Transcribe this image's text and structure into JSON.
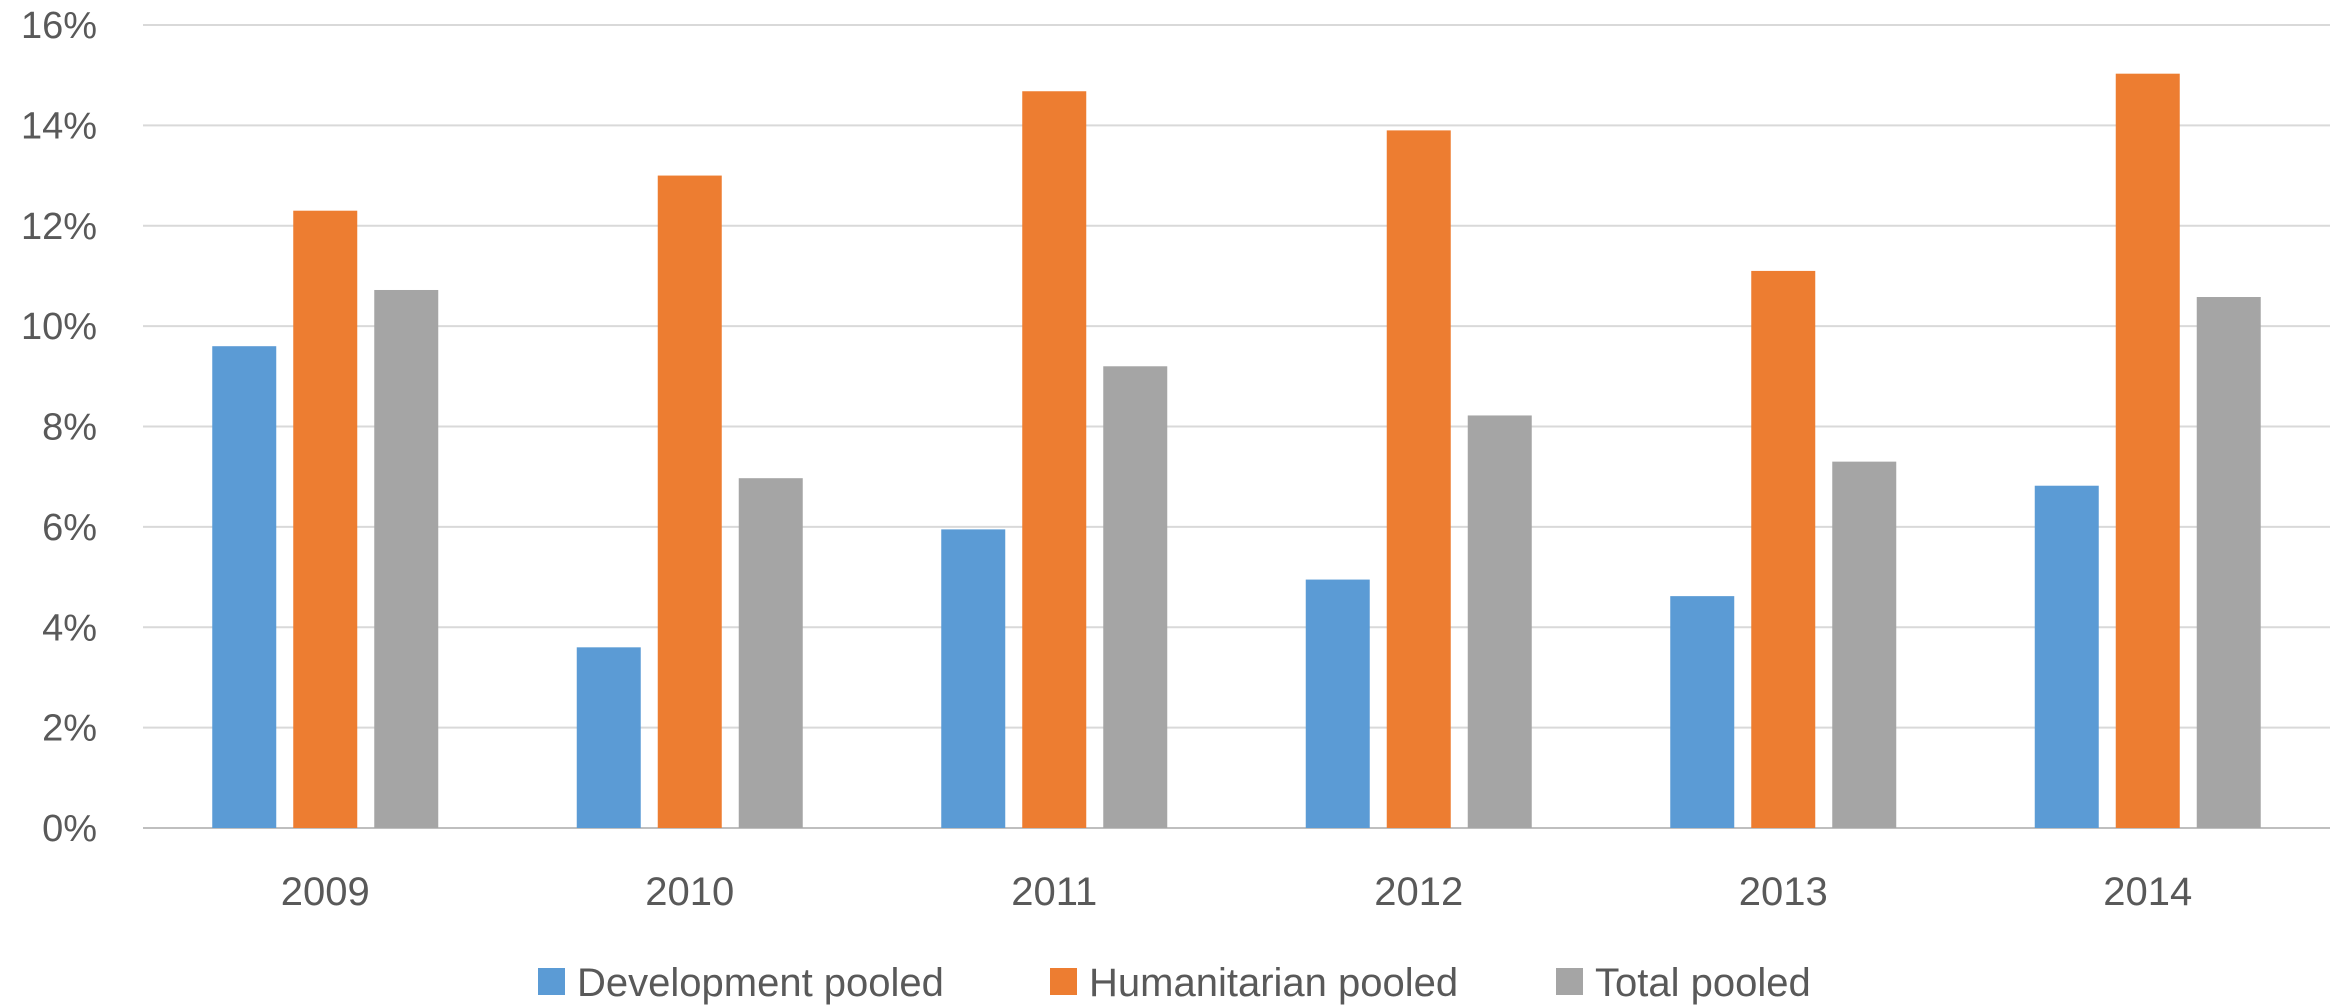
{
  "chart_data": {
    "type": "bar",
    "categories": [
      "2009",
      "2010",
      "2011",
      "2012",
      "2013",
      "2014"
    ],
    "series": [
      {
        "name": "Development pooled",
        "color": "#5b9bd5",
        "values": [
          9.6,
          3.6,
          5.95,
          4.95,
          4.62,
          6.82
        ]
      },
      {
        "name": "Humanitarian pooled",
        "color": "#ed7d31",
        "values": [
          12.3,
          13.0,
          14.68,
          13.9,
          11.1,
          15.03
        ]
      },
      {
        "name": "Total pooled",
        "color": "#a5a5a5",
        "values": [
          10.72,
          6.97,
          9.2,
          8.22,
          7.3,
          10.58
        ]
      }
    ],
    "y_ticks": [
      "0%",
      "2%",
      "4%",
      "6%",
      "8%",
      "10%",
      "12%",
      "14%",
      "16%"
    ],
    "ylim": [
      0,
      16
    ],
    "grid": true,
    "legend_position": "bottom"
  }
}
